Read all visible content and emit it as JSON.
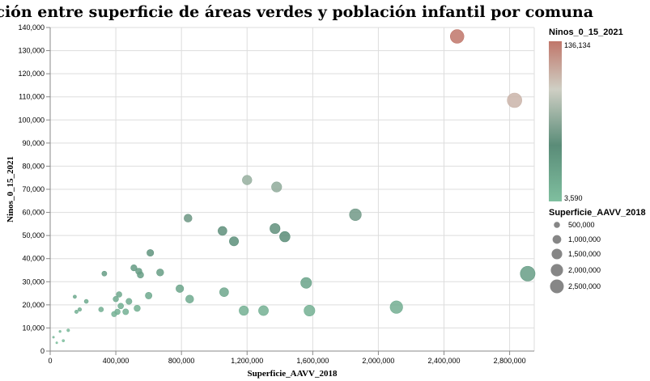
{
  "chart_data": {
    "type": "scatter",
    "title": "Relación entre superficie de áreas verdes y población infantil por comuna",
    "xlabel": "Superficie_AAVV_2018",
    "ylabel": "Ninos_0_15_2021",
    "xlim": [
      0,
      2950000
    ],
    "ylim": [
      0,
      140000
    ],
    "x_ticks": [
      0,
      400000,
      800000,
      1200000,
      1600000,
      2000000,
      2400000,
      2800000
    ],
    "x_tick_labels": [
      "0",
      "400,000",
      "800,000",
      "1,200,000",
      "1,600,000",
      "2,000,000",
      "2,400,000",
      "2,800,000"
    ],
    "y_ticks": [
      0,
      10000,
      20000,
      30000,
      40000,
      50000,
      60000,
      70000,
      80000,
      90000,
      100000,
      110000,
      120000,
      130000,
      140000
    ],
    "y_tick_labels": [
      "0",
      "10,000",
      "20,000",
      "30,000",
      "40,000",
      "50,000",
      "60,000",
      "70,000",
      "80,000",
      "90,000",
      "100,000",
      "110,000",
      "120,000",
      "130,000",
      "140,000"
    ],
    "grid": true,
    "color": {
      "field": "Ninos_0_15_2021",
      "min": 3590,
      "max": 136134,
      "min_label": "3,590",
      "max_label": "136,134",
      "stops": [
        "#7fbf9f",
        "#5a8c78",
        "#cfcfc4",
        "#c0766a"
      ]
    },
    "size": {
      "field": "Superficie_AAVV_2018",
      "legend_values": [
        500000,
        1000000,
        1500000,
        2000000,
        2500000
      ],
      "legend_labels": [
        "500,000",
        "1,000,000",
        "1,500,000",
        "2,000,000",
        "2,500,000"
      ]
    },
    "legend": {
      "placement": "right",
      "color_title": "Ninos_0_15_2021",
      "size_title": "Superficie_AAVV_2018"
    },
    "points": [
      {
        "x": 20000,
        "y": 6000
      },
      {
        "x": 40000,
        "y": 3590
      },
      {
        "x": 60000,
        "y": 8500
      },
      {
        "x": 80000,
        "y": 4500
      },
      {
        "x": 110000,
        "y": 9000
      },
      {
        "x": 150000,
        "y": 23500
      },
      {
        "x": 160000,
        "y": 17000
      },
      {
        "x": 180000,
        "y": 18000
      },
      {
        "x": 220000,
        "y": 21500
      },
      {
        "x": 310000,
        "y": 18000
      },
      {
        "x": 330000,
        "y": 33500
      },
      {
        "x": 390000,
        "y": 16000
      },
      {
        "x": 400000,
        "y": 22500
      },
      {
        "x": 410000,
        "y": 17000
      },
      {
        "x": 420000,
        "y": 24500
      },
      {
        "x": 430000,
        "y": 19500
      },
      {
        "x": 460000,
        "y": 17000
      },
      {
        "x": 480000,
        "y": 21500
      },
      {
        "x": 510000,
        "y": 36000
      },
      {
        "x": 530000,
        "y": 18500
      },
      {
        "x": 540000,
        "y": 34500
      },
      {
        "x": 550000,
        "y": 33000
      },
      {
        "x": 600000,
        "y": 24000
      },
      {
        "x": 610000,
        "y": 42500
      },
      {
        "x": 670000,
        "y": 34000
      },
      {
        "x": 790000,
        "y": 27000
      },
      {
        "x": 840000,
        "y": 57500
      },
      {
        "x": 850000,
        "y": 22500
      },
      {
        "x": 1050000,
        "y": 52000
      },
      {
        "x": 1060000,
        "y": 25500
      },
      {
        "x": 1120000,
        "y": 47500
      },
      {
        "x": 1180000,
        "y": 17500
      },
      {
        "x": 1200000,
        "y": 74000
      },
      {
        "x": 1300000,
        "y": 17500
      },
      {
        "x": 1370000,
        "y": 53000
      },
      {
        "x": 1380000,
        "y": 71000
      },
      {
        "x": 1430000,
        "y": 49500
      },
      {
        "x": 1560000,
        "y": 29500
      },
      {
        "x": 1580000,
        "y": 17500
      },
      {
        "x": 1860000,
        "y": 59000
      },
      {
        "x": 2110000,
        "y": 19000
      },
      {
        "x": 2480000,
        "y": 136134
      },
      {
        "x": 2830000,
        "y": 108500
      },
      {
        "x": 2910000,
        "y": 33500
      }
    ]
  }
}
